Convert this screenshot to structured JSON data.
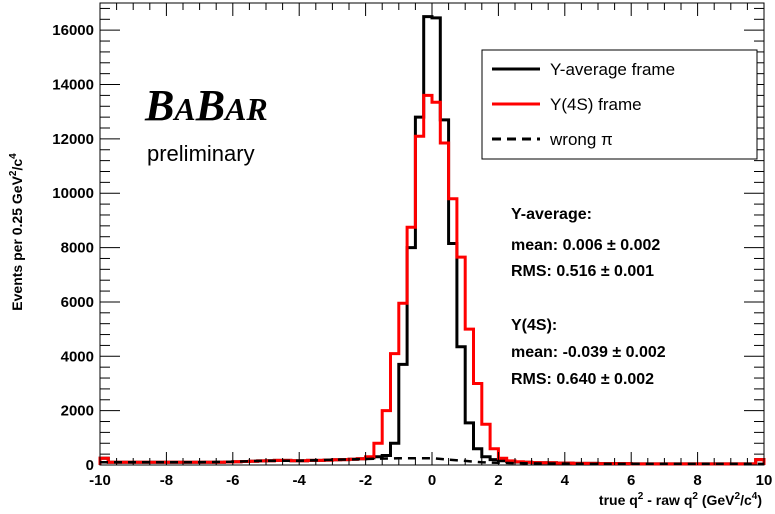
{
  "chart_data": {
    "type": "histogram",
    "x": {
      "label_main": "true q",
      "label_sup1": "2",
      "label_mid": " - raw q",
      "label_sup2": "2",
      "label_unit_open": " (GeV",
      "label_sup3": "2",
      "label_unit_mid": "/c",
      "label_sup4": "4",
      "label_unit_close": ")",
      "lim": [
        -10,
        10
      ],
      "ticks": [
        "-10",
        "-8",
        "-6",
        "-4",
        "-2",
        "0",
        "2",
        "4",
        "6",
        "8",
        "10"
      ],
      "tick_values": [
        -10,
        -8,
        -6,
        -4,
        -2,
        0,
        2,
        4,
        6,
        8,
        10
      ]
    },
    "y": {
      "label_main": "Events per 0.25 GeV",
      "label_sup1": "2",
      "label_mid": "/c",
      "label_sup2": "4",
      "lim": [
        0,
        17000
      ],
      "ticks": [
        "0",
        "2000",
        "4000",
        "6000",
        "8000",
        "10000",
        "12000",
        "14000",
        "16000"
      ],
      "tick_values": [
        0,
        2000,
        4000,
        6000,
        8000,
        10000,
        12000,
        14000,
        16000
      ]
    },
    "bin_width": 0.25,
    "bin_start": -10,
    "series": [
      {
        "name": "Y-average frame",
        "color": "#000000",
        "style": "solid",
        "bins_sparse": [
          [
            -10.0,
            250
          ],
          [
            -9.75,
            100
          ],
          [
            -9.5,
            100
          ],
          [
            -9.25,
            100
          ],
          [
            -9.0,
            100
          ],
          [
            -8.75,
            100
          ],
          [
            -8.5,
            100
          ],
          [
            -8.25,
            100
          ],
          [
            -8.0,
            100
          ],
          [
            -7.75,
            100
          ],
          [
            -7.5,
            100
          ],
          [
            -7.25,
            100
          ],
          [
            -7.0,
            100
          ],
          [
            -6.75,
            100
          ],
          [
            -6.5,
            100
          ],
          [
            -6.25,
            110
          ],
          [
            -6.0,
            120
          ],
          [
            -5.75,
            130
          ],
          [
            -5.5,
            140
          ],
          [
            -5.25,
            150
          ],
          [
            -5.0,
            160
          ],
          [
            -4.75,
            170
          ],
          [
            -4.5,
            170
          ],
          [
            -4.25,
            160
          ],
          [
            -4.0,
            160
          ],
          [
            -3.75,
            170
          ],
          [
            -3.5,
            170
          ],
          [
            -3.25,
            180
          ],
          [
            -3.0,
            190
          ],
          [
            -2.75,
            200
          ],
          [
            -2.5,
            210
          ],
          [
            -2.25,
            230
          ],
          [
            -2.0,
            260
          ],
          [
            -1.75,
            300
          ],
          [
            -1.5,
            350
          ],
          [
            -1.25,
            800
          ],
          [
            -1.0,
            3700
          ],
          [
            -0.75,
            8000
          ],
          [
            -0.5,
            12800
          ],
          [
            -0.25,
            16500
          ],
          [
            0.0,
            16450
          ],
          [
            0.25,
            12700
          ],
          [
            0.5,
            8150
          ],
          [
            0.75,
            4350
          ],
          [
            1.0,
            1550
          ],
          [
            1.25,
            600
          ],
          [
            1.5,
            300
          ],
          [
            1.75,
            200
          ],
          [
            2.0,
            160
          ],
          [
            2.25,
            130
          ],
          [
            2.5,
            110
          ],
          [
            2.75,
            100
          ],
          [
            3.0,
            90
          ],
          [
            3.25,
            80
          ],
          [
            3.5,
            80
          ],
          [
            3.75,
            70
          ],
          [
            4.0,
            70
          ],
          [
            4.25,
            60
          ],
          [
            4.5,
            60
          ],
          [
            4.75,
            60
          ],
          [
            5.0,
            50
          ],
          [
            5.25,
            50
          ],
          [
            5.5,
            50
          ],
          [
            5.75,
            50
          ],
          [
            6.0,
            40
          ],
          [
            6.25,
            40
          ],
          [
            6.5,
            40
          ],
          [
            6.75,
            40
          ],
          [
            7.0,
            40
          ],
          [
            7.25,
            40
          ],
          [
            7.5,
            40
          ],
          [
            7.75,
            40
          ],
          [
            8.0,
            40
          ],
          [
            8.25,
            40
          ],
          [
            8.5,
            40
          ],
          [
            8.75,
            40
          ],
          [
            9.0,
            40
          ],
          [
            9.25,
            40
          ],
          [
            9.5,
            40
          ],
          [
            9.75,
            200
          ]
        ]
      },
      {
        "name": "Υ(4S) frame",
        "color": "#ff0000",
        "style": "solid",
        "bins_sparse": [
          [
            -10.0,
            250
          ],
          [
            -9.75,
            100
          ],
          [
            -9.5,
            100
          ],
          [
            -9.25,
            100
          ],
          [
            -9.0,
            100
          ],
          [
            -8.75,
            100
          ],
          [
            -8.5,
            100
          ],
          [
            -8.25,
            100
          ],
          [
            -8.0,
            100
          ],
          [
            -7.75,
            100
          ],
          [
            -7.5,
            100
          ],
          [
            -7.25,
            100
          ],
          [
            -7.0,
            100
          ],
          [
            -6.75,
            100
          ],
          [
            -6.5,
            100
          ],
          [
            -6.25,
            110
          ],
          [
            -6.0,
            120
          ],
          [
            -5.75,
            130
          ],
          [
            -5.5,
            140
          ],
          [
            -5.25,
            150
          ],
          [
            -5.0,
            160
          ],
          [
            -4.75,
            170
          ],
          [
            -4.5,
            170
          ],
          [
            -4.25,
            160
          ],
          [
            -4.0,
            160
          ],
          [
            -3.75,
            170
          ],
          [
            -3.5,
            170
          ],
          [
            -3.25,
            180
          ],
          [
            -3.0,
            190
          ],
          [
            -2.75,
            200
          ],
          [
            -2.5,
            210
          ],
          [
            -2.25,
            230
          ],
          [
            -2.0,
            300
          ],
          [
            -1.75,
            800
          ],
          [
            -1.5,
            2000
          ],
          [
            -1.25,
            4100
          ],
          [
            -1.0,
            5950
          ],
          [
            -0.75,
            8750
          ],
          [
            -0.5,
            12100
          ],
          [
            -0.25,
            13600
          ],
          [
            0.0,
            13350
          ],
          [
            0.25,
            11850
          ],
          [
            0.5,
            9800
          ],
          [
            0.75,
            7650
          ],
          [
            1.0,
            5000
          ],
          [
            1.25,
            3000
          ],
          [
            1.5,
            1500
          ],
          [
            1.75,
            600
          ],
          [
            2.0,
            250
          ],
          [
            2.25,
            150
          ],
          [
            2.5,
            120
          ],
          [
            2.75,
            100
          ],
          [
            3.0,
            90
          ],
          [
            3.25,
            80
          ],
          [
            3.5,
            80
          ],
          [
            3.75,
            70
          ],
          [
            4.0,
            70
          ],
          [
            4.25,
            60
          ],
          [
            4.5,
            60
          ],
          [
            4.75,
            60
          ],
          [
            5.0,
            50
          ],
          [
            5.25,
            50
          ],
          [
            5.5,
            50
          ],
          [
            5.75,
            50
          ],
          [
            6.0,
            40
          ],
          [
            6.25,
            40
          ],
          [
            6.5,
            40
          ],
          [
            6.75,
            40
          ],
          [
            7.0,
            40
          ],
          [
            7.25,
            40
          ],
          [
            7.5,
            40
          ],
          [
            7.75,
            40
          ],
          [
            8.0,
            40
          ],
          [
            8.25,
            40
          ],
          [
            8.5,
            40
          ],
          [
            8.75,
            40
          ],
          [
            9.0,
            40
          ],
          [
            9.25,
            40
          ],
          [
            9.5,
            40
          ],
          [
            9.75,
            200
          ]
        ]
      },
      {
        "name": "wrong π",
        "color": "#000000",
        "style": "dashed",
        "bins_sparse": [
          [
            -10.0,
            100
          ],
          [
            -9.0,
            100
          ],
          [
            -8.0,
            100
          ],
          [
            -7.0,
            100
          ],
          [
            -6.0,
            120
          ],
          [
            -5.0,
            160
          ],
          [
            -4.0,
            160
          ],
          [
            -3.0,
            190
          ],
          [
            -2.0,
            220
          ],
          [
            -1.0,
            250
          ],
          [
            -0.5,
            250
          ],
          [
            0.0,
            250
          ],
          [
            0.5,
            200
          ],
          [
            1.0,
            150
          ],
          [
            1.5,
            100
          ],
          [
            2.0,
            80
          ],
          [
            3.0,
            60
          ],
          [
            4.0,
            50
          ],
          [
            5.0,
            40
          ],
          [
            6.0,
            40
          ],
          [
            7.0,
            40
          ],
          [
            8.0,
            40
          ],
          [
            9.0,
            40
          ],
          [
            10.0,
            40
          ]
        ]
      }
    ],
    "legend": {
      "placement": "top-right",
      "entries": [
        {
          "label": "Y-average frame",
          "color": "#000000",
          "style": "solid"
        },
        {
          "label": "Υ(4S) frame",
          "color": "#ff0000",
          "style": "solid"
        },
        {
          "label": "wrong π",
          "color": "#000000",
          "style": "dashed"
        }
      ]
    },
    "annotations": {
      "experiment": "BABAR",
      "experiment_parts": [
        "B",
        "A",
        "B",
        "AR"
      ],
      "status": "preliminary",
      "stats": [
        "Y-average:",
        "mean: 0.006 ± 0.002",
        "RMS: 0.516 ± 0.001",
        "",
        "Υ(4S):",
        "mean: -0.039 ± 0.002",
        "RMS: 0.640 ± 0.002"
      ]
    },
    "grid": false
  }
}
